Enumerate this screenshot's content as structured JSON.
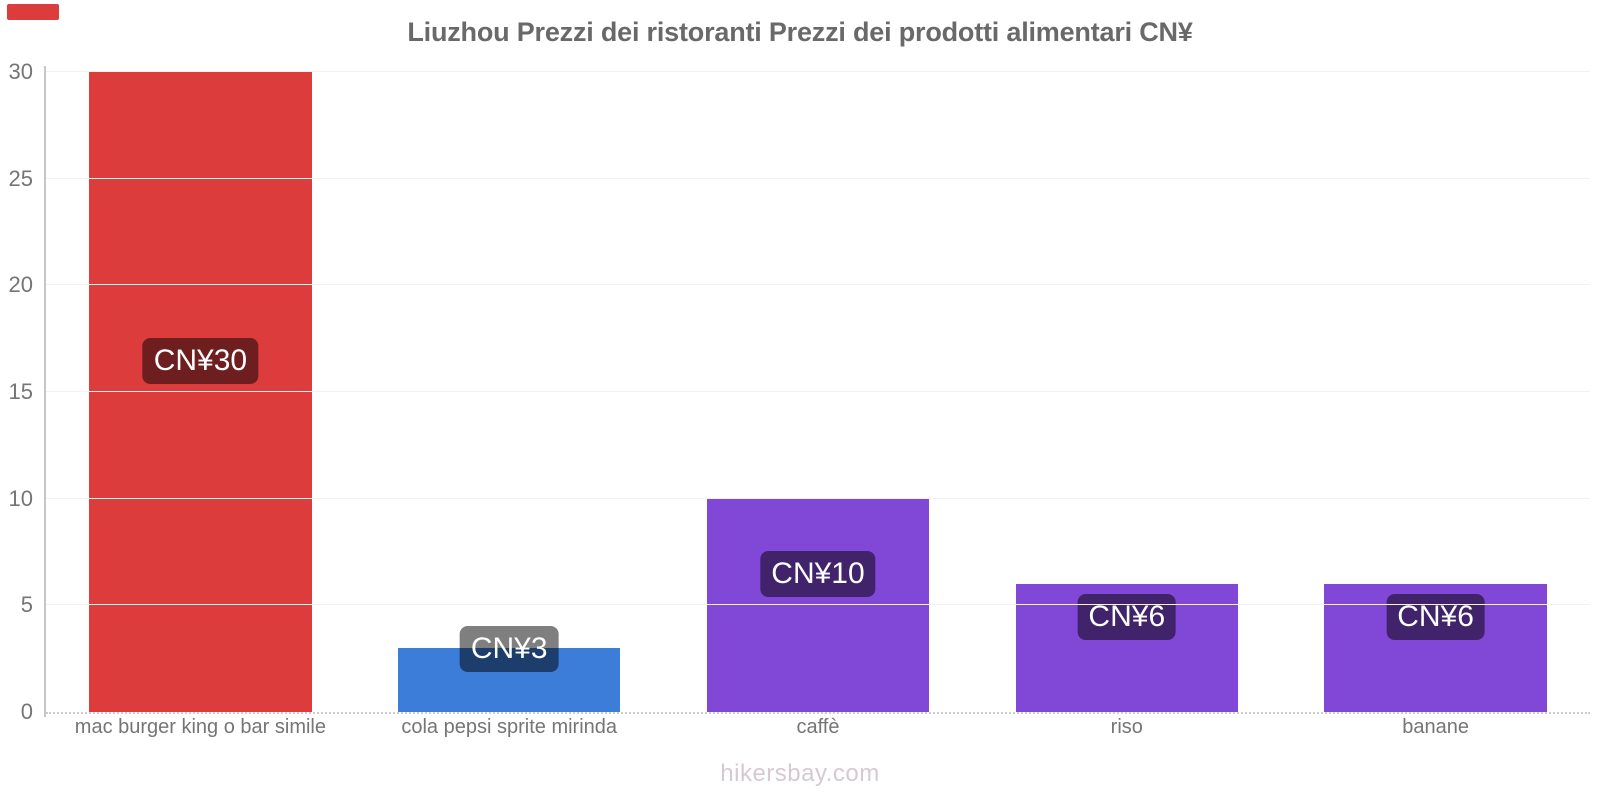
{
  "title": "Liuzhou Prezzi dei ristoranti Prezzi dei prodotti alimentari CN¥",
  "footer": "hikersbay.com",
  "corner_mark_color": "#dc3c3c",
  "chart_data": {
    "type": "bar",
    "title": "Liuzhou Prezzi dei ristoranti Prezzi dei prodotti alimentari CN¥",
    "categories": [
      "mac burger king o bar simile",
      "cola pepsi sprite mirinda",
      "caffè",
      "riso",
      "banane"
    ],
    "values": [
      30,
      3,
      10,
      6,
      6
    ],
    "value_labels": [
      "CN¥30",
      "CN¥3",
      "CN¥10",
      "CN¥6",
      "CN¥6"
    ],
    "bar_colors": [
      "#dc3c3c",
      "#3b7dd8",
      "#8147d6",
      "#8147d6",
      "#8147d6"
    ],
    "badge_bg": "rgba(0,0,0,0.5)",
    "currency": "CN¥",
    "xlabel": "",
    "ylabel": "",
    "ylim": [
      0,
      30
    ],
    "yticks": [
      0,
      5,
      10,
      15,
      20,
      25,
      30
    ],
    "grid": "horizontal",
    "legend": "none",
    "watermark": "hikersbay.com"
  }
}
